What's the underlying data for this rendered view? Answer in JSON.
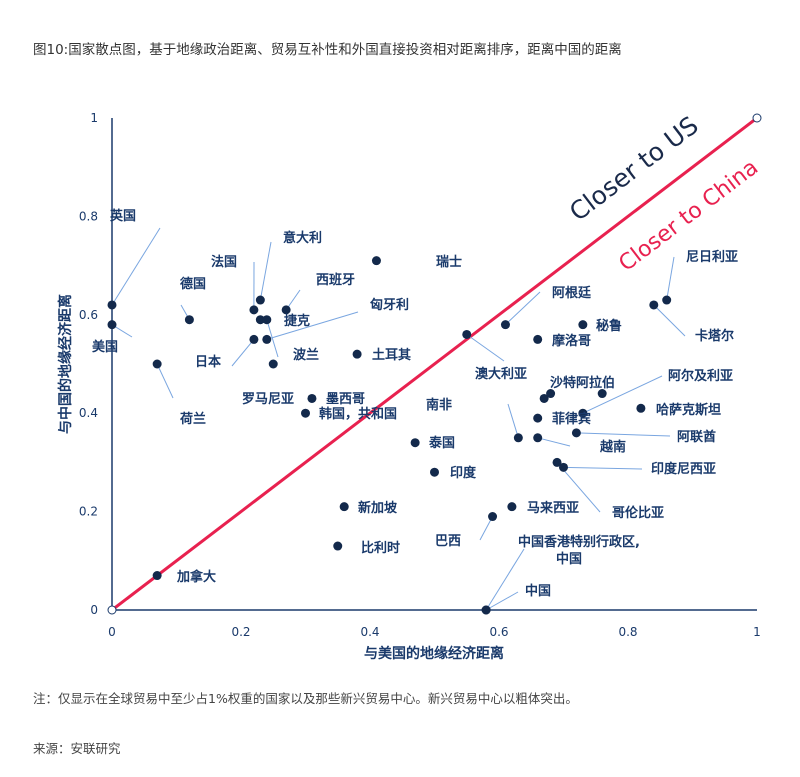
{
  "title": "图10:国家散点图，基于地缘政治距离、贸易互补性和外国直接投资相对距离排序，距离中国的距离",
  "note": "注：仅显示在全球贸易中至少占1%权重的国家以及那些新兴贸易中心。新兴贸易中心以粗体突出。",
  "source": "来源：安联研究",
  "chart_data": {
    "type": "scatter",
    "xlabel": "与美国的地缘经济距离",
    "ylabel": "与中国的地缘经济距离",
    "xlim": [
      0,
      1
    ],
    "ylim": [
      0,
      1
    ],
    "xticks": [
      "0",
      "0.2",
      "0.4",
      "0.6",
      "0.8",
      "1"
    ],
    "yticks": [
      "0",
      "0.2",
      "0.4",
      "0.6",
      "0.8",
      "1"
    ],
    "grid": false,
    "diagonal": {
      "from": [
        0,
        0
      ],
      "to": [
        1,
        1
      ],
      "color": "#e8214f"
    },
    "annotations": [
      {
        "text": "Closer to US",
        "color": "#1a2a4a"
      },
      {
        "text": "Closer to China",
        "color": "#e8214f"
      }
    ],
    "point_color": "#13294b",
    "points": [
      {
        "label": "英国",
        "x": 0.0,
        "y": 0.62
      },
      {
        "label": "美国",
        "x": 0.0,
        "y": 0.58
      },
      {
        "label": "德国",
        "x": 0.12,
        "y": 0.59
      },
      {
        "label": "荷兰",
        "x": 0.07,
        "y": 0.5
      },
      {
        "label": "法国",
        "x": 0.22,
        "y": 0.61
      },
      {
        "label": "意大利",
        "x": 0.23,
        "y": 0.63
      },
      {
        "label": "西班牙",
        "x": 0.27,
        "y": 0.61
      },
      {
        "label": "捷克",
        "x": 0.23,
        "y": 0.59
      },
      {
        "label": "匈牙利",
        "x": 0.24,
        "y": 0.55
      },
      {
        "label": "日本",
        "x": 0.22,
        "y": 0.55
      },
      {
        "label": "波兰",
        "x": 0.24,
        "y": 0.59
      },
      {
        "label": "罗马尼亚",
        "x": 0.25,
        "y": 0.5
      },
      {
        "label": "瑞士",
        "x": 0.41,
        "y": 0.71
      },
      {
        "label": "土耳其",
        "x": 0.38,
        "y": 0.52
      },
      {
        "label": "墨西哥",
        "x": 0.31,
        "y": 0.43
      },
      {
        "label": "韩国，共和国",
        "x": 0.3,
        "y": 0.4
      },
      {
        "label": "泰国",
        "x": 0.47,
        "y": 0.34
      },
      {
        "label": "印度",
        "x": 0.5,
        "y": 0.28
      },
      {
        "label": "新加坡",
        "x": 0.36,
        "y": 0.21
      },
      {
        "label": "比利时",
        "x": 0.35,
        "y": 0.13
      },
      {
        "label": "加拿大",
        "x": 0.07,
        "y": 0.07
      },
      {
        "label": "中国",
        "x": 0.58,
        "y": 0.0
      },
      {
        "label": "中国香港特别行政区,",
        "label2": "中国",
        "x": 0.58,
        "y": 0.0
      },
      {
        "label": "巴西",
        "x": 0.59,
        "y": 0.19
      },
      {
        "label": "马来西亚",
        "x": 0.62,
        "y": 0.21
      },
      {
        "label": "澳大利亚",
        "x": 0.55,
        "y": 0.56
      },
      {
        "label": "阿根廷",
        "x": 0.61,
        "y": 0.58
      },
      {
        "label": "秘鲁",
        "x": 0.73,
        "y": 0.58
      },
      {
        "label": "摩洛哥",
        "x": 0.66,
        "y": 0.55
      },
      {
        "label": "尼日利亚",
        "x": 0.86,
        "y": 0.63
      },
      {
        "label": "卡塔尔",
        "x": 0.84,
        "y": 0.62
      },
      {
        "label": "沙特阿拉伯",
        "x": 0.68,
        "y": 0.44
      },
      {
        "label": "",
        "x": 0.67,
        "y": 0.43
      },
      {
        "label": "阿尔及利亚",
        "x": 0.73,
        "y": 0.4
      },
      {
        "label": "",
        "x": 0.76,
        "y": 0.44
      },
      {
        "label": "哈萨克斯坦",
        "x": 0.82,
        "y": 0.41
      },
      {
        "label": "阿联酋",
        "x": 0.72,
        "y": 0.36
      },
      {
        "label": "南非",
        "x": 0.63,
        "y": 0.35
      },
      {
        "label": "越南",
        "x": 0.66,
        "y": 0.35
      },
      {
        "label": "印度尼西亚",
        "x": 0.7,
        "y": 0.29
      },
      {
        "label": "哥伦比亚",
        "x": 0.69,
        "y": 0.3
      },
      {
        "label": "菲律宾",
        "x": 0.66,
        "y": 0.39
      }
    ]
  }
}
